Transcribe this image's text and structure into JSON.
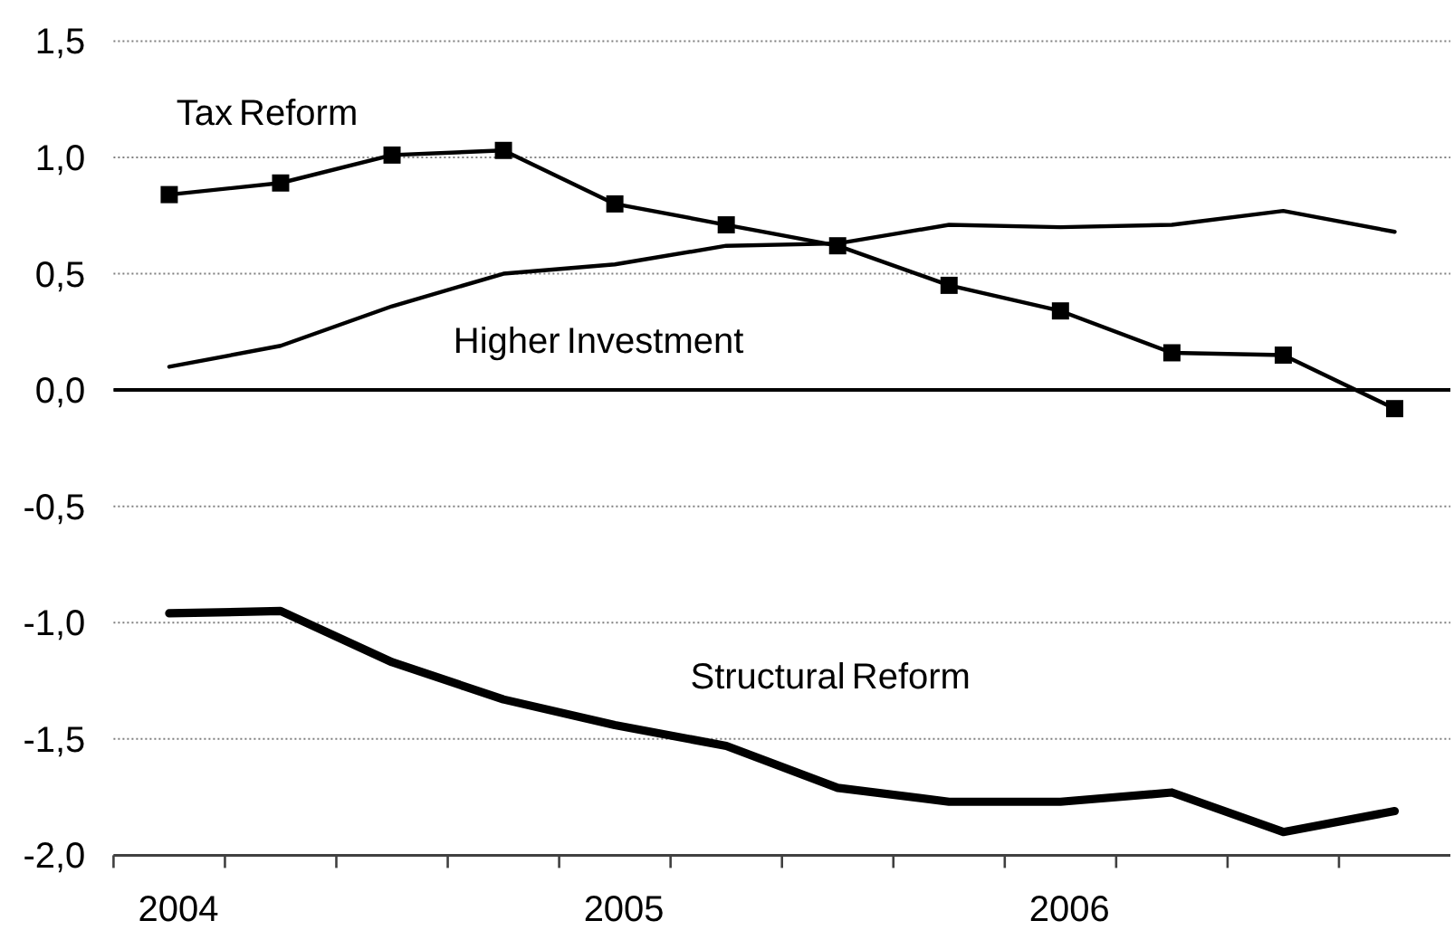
{
  "chart_data": {
    "type": "line",
    "categories": [
      "2004",
      null,
      null,
      null,
      "2005",
      null,
      null,
      null,
      "2006",
      null,
      null,
      null
    ],
    "series": [
      {
        "name": "Tax Reform",
        "color": "#000000",
        "marker": "square",
        "values": [
          0.84,
          0.89,
          1.01,
          1.03,
          0.8,
          0.71,
          0.62,
          0.45,
          0.34,
          0.16,
          0.15,
          -0.08
        ]
      },
      {
        "name": "Higher Investment",
        "color": "#000000",
        "marker": "none",
        "values": [
          0.1,
          0.19,
          0.36,
          0.5,
          0.54,
          0.62,
          0.63,
          0.71,
          0.7,
          0.71,
          0.77,
          0.68
        ]
      },
      {
        "name": "Structural Reform",
        "color": "#000000",
        "marker": "none",
        "values": [
          -0.96,
          -0.95,
          -1.17,
          -1.33,
          -1.44,
          -1.53,
          -1.71,
          -1.77,
          -1.77,
          -1.73,
          -1.9,
          -1.81
        ]
      }
    ],
    "ylim": [
      -2,
      1.5
    ],
    "yticks": [
      {
        "value": -2,
        "label": "-2,0"
      },
      {
        "value": -1.5,
        "label": "-1,5"
      },
      {
        "value": -1,
        "label": "-1,0"
      },
      {
        "value": -0.5,
        "label": "-0,5"
      },
      {
        "value": 0,
        "label": "0,0"
      },
      {
        "value": 0.5,
        "label": "0,5"
      },
      {
        "value": 1,
        "label": "1,0"
      },
      {
        "value": 1.5,
        "label": "1,5"
      }
    ],
    "grid": "y",
    "ref_lines": [
      {
        "axis": "y",
        "value": 0,
        "color": "#000000"
      }
    ]
  }
}
